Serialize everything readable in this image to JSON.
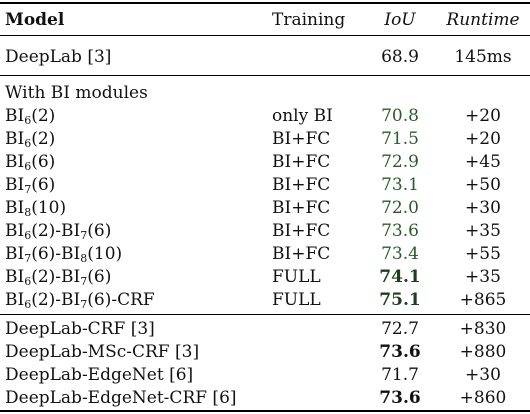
{
  "header": {
    "model": "Model",
    "training": "Training",
    "iou": "IoU",
    "runtime": "Runtime"
  },
  "baseline": {
    "model": "DeepLab [3]",
    "iou": "68.9",
    "runtime": "145ms"
  },
  "bi_section_title": "With BI modules",
  "bi_rows": [
    {
      "pre": "BI",
      "sub": "6",
      "post": "(2)",
      "training": "only BI",
      "iou": "70.8",
      "runtime": "+20",
      "iou_bold": false
    },
    {
      "pre": "BI",
      "sub": "6",
      "post": "(2)",
      "training": "BI+FC",
      "iou": "71.5",
      "runtime": "+20",
      "iou_bold": false
    },
    {
      "pre": "BI",
      "sub": "6",
      "post": "(6)",
      "training": "BI+FC",
      "iou": "72.9",
      "runtime": "+45",
      "iou_bold": false
    },
    {
      "pre": "BI",
      "sub": "7",
      "post": "(6)",
      "training": "BI+FC",
      "iou": "73.1",
      "runtime": "+50",
      "iou_bold": false
    },
    {
      "pre": "BI",
      "sub": "8",
      "post": "(10)",
      "training": "BI+FC",
      "iou": "72.0",
      "runtime": "+30",
      "iou_bold": false
    },
    {
      "pre": "BI",
      "sub": "6",
      "post": "(2)-BI",
      "sub2": "7",
      "post2": "(6)",
      "training": "BI+FC",
      "iou": "73.6",
      "runtime": "+35",
      "iou_bold": false
    },
    {
      "pre": "BI",
      "sub": "7",
      "post": "(6)-BI",
      "sub2": "8",
      "post2": "(10)",
      "training": "BI+FC",
      "iou": "73.4",
      "runtime": "+55",
      "iou_bold": false
    },
    {
      "pre": "BI",
      "sub": "6",
      "post": "(2)-BI",
      "sub2": "7",
      "post2": "(6)",
      "training": "FULL",
      "iou": "74.1",
      "runtime": "+35",
      "iou_bold": true
    },
    {
      "pre": "BI",
      "sub": "6",
      "post": "(2)-BI",
      "sub2": "7",
      "post2": "(6)-CRF",
      "training": "FULL",
      "iou": "75.1",
      "runtime": "+865",
      "iou_bold": true
    }
  ],
  "other_rows": [
    {
      "model": "DeepLab-CRF [3]",
      "iou": "72.7",
      "runtime": "+830",
      "iou_bold": false
    },
    {
      "model": "DeepLab-MSc-CRF [3]",
      "iou": "73.6",
      "runtime": "+880",
      "iou_bold": true
    },
    {
      "model": "DeepLab-EdgeNet [6]",
      "iou": "71.7",
      "runtime": "+30",
      "iou_bold": false
    },
    {
      "model": "DeepLab-EdgeNet-CRF [6]",
      "iou": "73.6",
      "runtime": "+860",
      "iou_bold": true
    }
  ]
}
